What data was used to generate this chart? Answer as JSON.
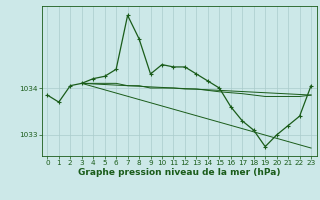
{
  "bg_color": "#cce8e8",
  "grid_color": "#aacccc",
  "line_color": "#1a5c1a",
  "marker_color": "#1a5c1a",
  "xlabel": "Graphe pression niveau de la mer (hPa)",
  "xlabel_fontsize": 6.5,
  "tick_fontsize": 5.2,
  "xlim": [
    -0.5,
    23.5
  ],
  "ylim": [
    1032.55,
    1035.75
  ],
  "yticks": [
    1033,
    1034
  ],
  "xticks": [
    0,
    1,
    2,
    3,
    4,
    5,
    6,
    7,
    8,
    9,
    10,
    11,
    12,
    13,
    14,
    15,
    16,
    17,
    18,
    19,
    20,
    21,
    22,
    23
  ],
  "series": [
    {
      "x": [
        0,
        1,
        2,
        3,
        4,
        5,
        6,
        7,
        8,
        9,
        10,
        11,
        12,
        13,
        14,
        15,
        16,
        17,
        18,
        19,
        20,
        21,
        22,
        23
      ],
      "y": [
        1033.85,
        1033.7,
        1034.05,
        1034.1,
        1034.2,
        1034.25,
        1034.4,
        1035.55,
        1035.05,
        1034.3,
        1034.5,
        1034.45,
        1034.45,
        1034.3,
        1034.15,
        1034.0,
        1033.6,
        1033.3,
        1033.1,
        1032.75,
        1033.0,
        1033.2,
        1033.4,
        1034.05
      ],
      "marker": true,
      "lw": 0.9
    },
    {
      "x": [
        3,
        4,
        5,
        6,
        7,
        8,
        9,
        10,
        11,
        12,
        13,
        14,
        15,
        16,
        17,
        18,
        19,
        20,
        21,
        22,
        23
      ],
      "y": [
        1034.1,
        1034.1,
        1034.1,
        1034.1,
        1034.05,
        1034.05,
        1034.0,
        1034.0,
        1034.0,
        1033.98,
        1033.98,
        1033.95,
        1033.92,
        1033.9,
        1033.88,
        1033.85,
        1033.82,
        1033.82,
        1033.82,
        1033.82,
        1033.85
      ],
      "marker": false,
      "lw": 0.7
    },
    {
      "x": [
        3,
        23
      ],
      "y": [
        1034.1,
        1033.85
      ],
      "marker": false,
      "lw": 0.7
    },
    {
      "x": [
        3,
        23
      ],
      "y": [
        1034.1,
        1032.72
      ],
      "marker": false,
      "lw": 0.7
    }
  ]
}
